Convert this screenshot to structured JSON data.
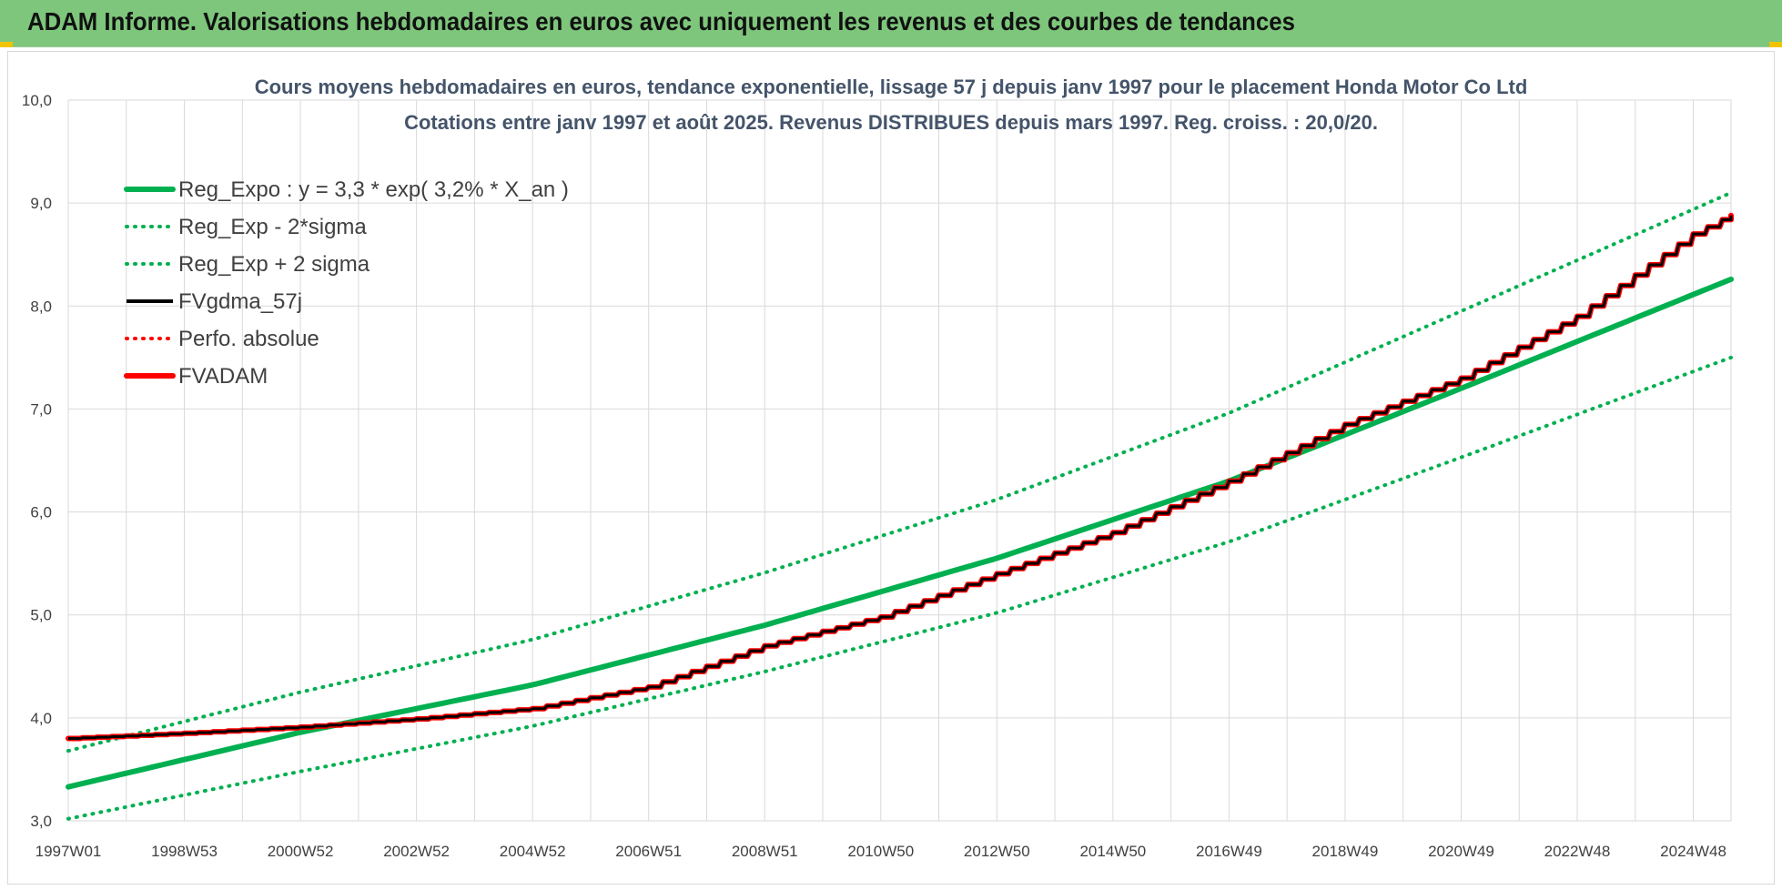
{
  "header": {
    "title": "ADAM Informe. Valorisations hebdomadaires en euros avec uniquement les revenus et des courbes de tendances"
  },
  "colors": {
    "banner": "#7dc67b",
    "reg_expo": "#00b050",
    "sigma_bands": "#00b050",
    "fvgdma": "#000000",
    "perfo": "#ff0000",
    "fvadam": "#ff0000",
    "grid": "#d9d9d9"
  },
  "chart_data": {
    "type": "line",
    "title_lines": [
      "Cours moyens hebdomadaires en euros, tendance exponentielle, lissage 57 j depuis janv 1997 pour le placement Honda Motor Co Ltd",
      "Cotations entre janv 1997 et août 2025.  Revenus DISTRIBUES depuis mars 1997. Reg. croiss. : 20,0/20."
    ],
    "xlabel": "",
    "ylabel": "",
    "ylim": [
      3.0,
      10.0
    ],
    "y_ticks": [
      "3,0",
      "4,0",
      "5,0",
      "6,0",
      "7,0",
      "8,0",
      "9,0",
      "10,0"
    ],
    "x_tick_labels": [
      "1997W01",
      "1998W53",
      "2000W52",
      "2002W52",
      "2004W52",
      "2006W51",
      "2008W51",
      "2010W50",
      "2012W50",
      "2014W50",
      "2016W49",
      "2018W49",
      "2020W49",
      "2022W48",
      "2024W48"
    ],
    "x_range_years": [
      1997.0,
      2025.65
    ],
    "grid": true,
    "legend_position": "top-left",
    "regression": {
      "a": 3.3,
      "rate_percent": 3.2
    },
    "series": [
      {
        "name": "Reg_Expo : y = 3,3 * exp( 3,2% *  X_an )",
        "style": "solid-thick",
        "color": "#00b050",
        "x": [
          1997,
          2001,
          2005,
          2009,
          2013,
          2017,
          2021,
          2025.65
        ],
        "values": [
          3.33,
          3.86,
          4.32,
          4.9,
          5.55,
          6.3,
          7.2,
          8.26
        ]
      },
      {
        "name": "Reg_Exp - 2*sigma",
        "style": "dotted",
        "color": "#00b050",
        "x": [
          1997,
          2001,
          2005,
          2009,
          2013,
          2017,
          2021,
          2025.65
        ],
        "values": [
          3.02,
          3.48,
          3.92,
          4.45,
          5.02,
          5.71,
          6.53,
          7.5
        ]
      },
      {
        "name": "Reg_Exp + 2 sigma",
        "style": "dotted",
        "color": "#00b050",
        "x": [
          1997,
          2001,
          2005,
          2009,
          2013,
          2017,
          2021,
          2025.65
        ],
        "values": [
          3.68,
          4.25,
          4.76,
          5.41,
          6.12,
          6.96,
          7.95,
          9.1
        ]
      },
      {
        "name": "FVgdma_57j",
        "style": "solid",
        "color": "#000000",
        "x": [
          1997,
          1999,
          2001,
          2003,
          2005,
          2007,
          2009,
          2011,
          2013,
          2015,
          2017,
          2019,
          2021,
          2023,
          2025,
          2025.65
        ],
        "values": [
          3.8,
          3.85,
          3.91,
          3.99,
          4.09,
          4.3,
          4.7,
          4.98,
          5.4,
          5.8,
          6.3,
          6.85,
          7.3,
          7.9,
          8.7,
          8.88
        ]
      },
      {
        "name": "Perfo. absolue",
        "style": "dotted",
        "color": "#ff0000",
        "x": [
          1997,
          1999,
          2001,
          2003,
          2005,
          2007,
          2009,
          2011,
          2013,
          2015,
          2017,
          2019,
          2021,
          2023,
          2025,
          2025.65
        ],
        "values": [
          3.8,
          3.85,
          3.91,
          3.99,
          4.09,
          4.3,
          4.7,
          4.98,
          5.4,
          5.8,
          6.3,
          6.85,
          7.3,
          7.9,
          8.7,
          8.88
        ]
      },
      {
        "name": "FVADAM",
        "style": "solid-thick",
        "color": "#ff0000",
        "x": [
          1997,
          1999,
          2001,
          2003,
          2005,
          2007,
          2009,
          2011,
          2013,
          2015,
          2017,
          2019,
          2021,
          2023,
          2025,
          2025.65
        ],
        "values": [
          3.8,
          3.85,
          3.91,
          3.99,
          4.09,
          4.3,
          4.7,
          4.98,
          5.4,
          5.8,
          6.3,
          6.85,
          7.3,
          7.9,
          8.7,
          8.88
        ]
      }
    ]
  }
}
